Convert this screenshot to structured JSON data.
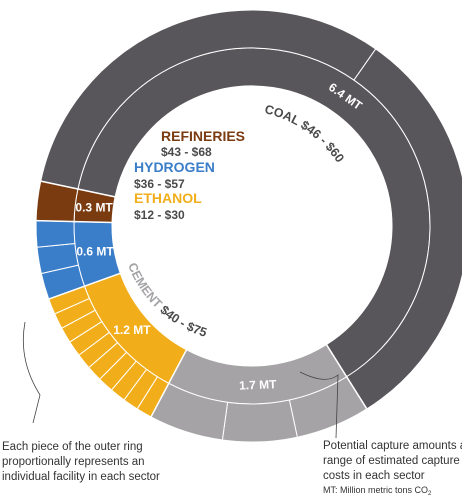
{
  "chart_data": {
    "type": "pie",
    "style": "double-ring donut",
    "sectors": [
      {
        "key": "coal",
        "name": "COAL",
        "cost": "$46 - $60",
        "amount": 6.4,
        "amount_label": "6.4 MT",
        "color": "#58565a",
        "outer_pieces": 2
      },
      {
        "key": "cement",
        "name": "CEMENT",
        "cost": "$40 - $75",
        "amount": 1.7,
        "amount_label": "1.7 MT",
        "color": "#a5a3a6",
        "outer_pieces": 3
      },
      {
        "key": "ethanol",
        "name": "ETHANOL",
        "cost": "$12 - $30",
        "amount": 1.2,
        "amount_label": "1.2 MT",
        "color": "#f2ae1a",
        "outer_pieces": 10
      },
      {
        "key": "hydrogen",
        "name": "HYDROGEN",
        "cost": "$36 - $57",
        "amount": 0.6,
        "amount_label": "0.6 MT",
        "color": "#3a7dc9",
        "outer_pieces": 3
      },
      {
        "key": "refineries",
        "name": "REFINERIES",
        "cost": "$43 - $68",
        "amount": 0.3,
        "amount_label": "0.3 MT",
        "color": "#7a3b11",
        "outer_pieces": 1
      }
    ],
    "label_colors": {
      "refineries": "#7a3b11",
      "hydrogen": "#3a7dc9",
      "ethanol": "#f2ae1a",
      "cost": "#4a4a4a"
    }
  },
  "notes": {
    "left_lines": [
      "Each piece of the outer ring",
      "proportionally represents an",
      "individual facility in each sector"
    ],
    "right_lines": [
      "Potential capture amounts and",
      "range of estimated capture",
      "costs in each sector"
    ],
    "footnote_prefix": "MT: Million metric tons CO",
    "footnote_sub": "2"
  }
}
